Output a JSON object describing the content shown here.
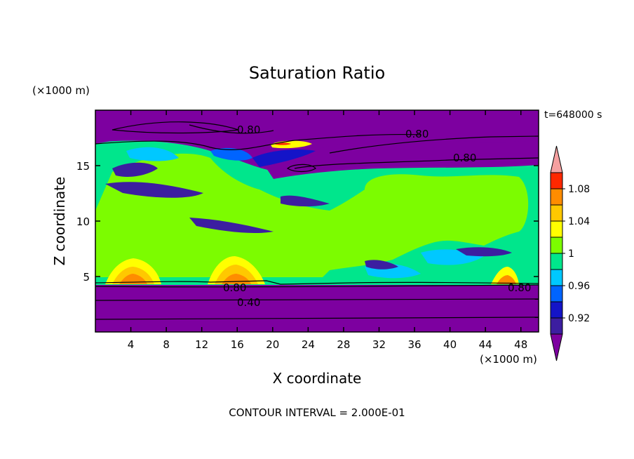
{
  "chart_data": {
    "type": "heatmap",
    "title": "Saturation Ratio",
    "xlabel": "X coordinate",
    "ylabel": "Z coordinate",
    "x_unit": "(×1000 m)",
    "y_unit": "(×1000 m)",
    "time_label": "t=648000 s",
    "footer": "CONTOUR INTERVAL = 2.000E-01",
    "xlim": [
      0,
      50
    ],
    "ylim": [
      0,
      20
    ],
    "x_ticks": [
      4,
      8,
      12,
      16,
      20,
      24,
      28,
      32,
      36,
      40,
      44,
      48
    ],
    "y_ticks": [
      5,
      10,
      15
    ],
    "colorbar": {
      "labels": [
        "1.08",
        "1.04",
        "1",
        "0.96",
        "0.92"
      ],
      "levels": [
        {
          "color": "#7d00a0"
        },
        {
          "color": "#3c1ea0"
        },
        {
          "color": "#1414c8"
        },
        {
          "color": "#0064ff"
        },
        {
          "color": "#00c8ff"
        },
        {
          "color": "#00e68c"
        },
        {
          "color": "#7cfc00"
        },
        {
          "color": "#ffff00"
        },
        {
          "color": "#ffc800"
        },
        {
          "color": "#ff8c00"
        },
        {
          "color": "#ff2800"
        },
        {
          "color": "#f5a0a0"
        }
      ]
    },
    "contour_labels": [
      "0.80",
      "0.80",
      "0.80",
      "0.80",
      "0.80",
      "0.40"
    ]
  }
}
